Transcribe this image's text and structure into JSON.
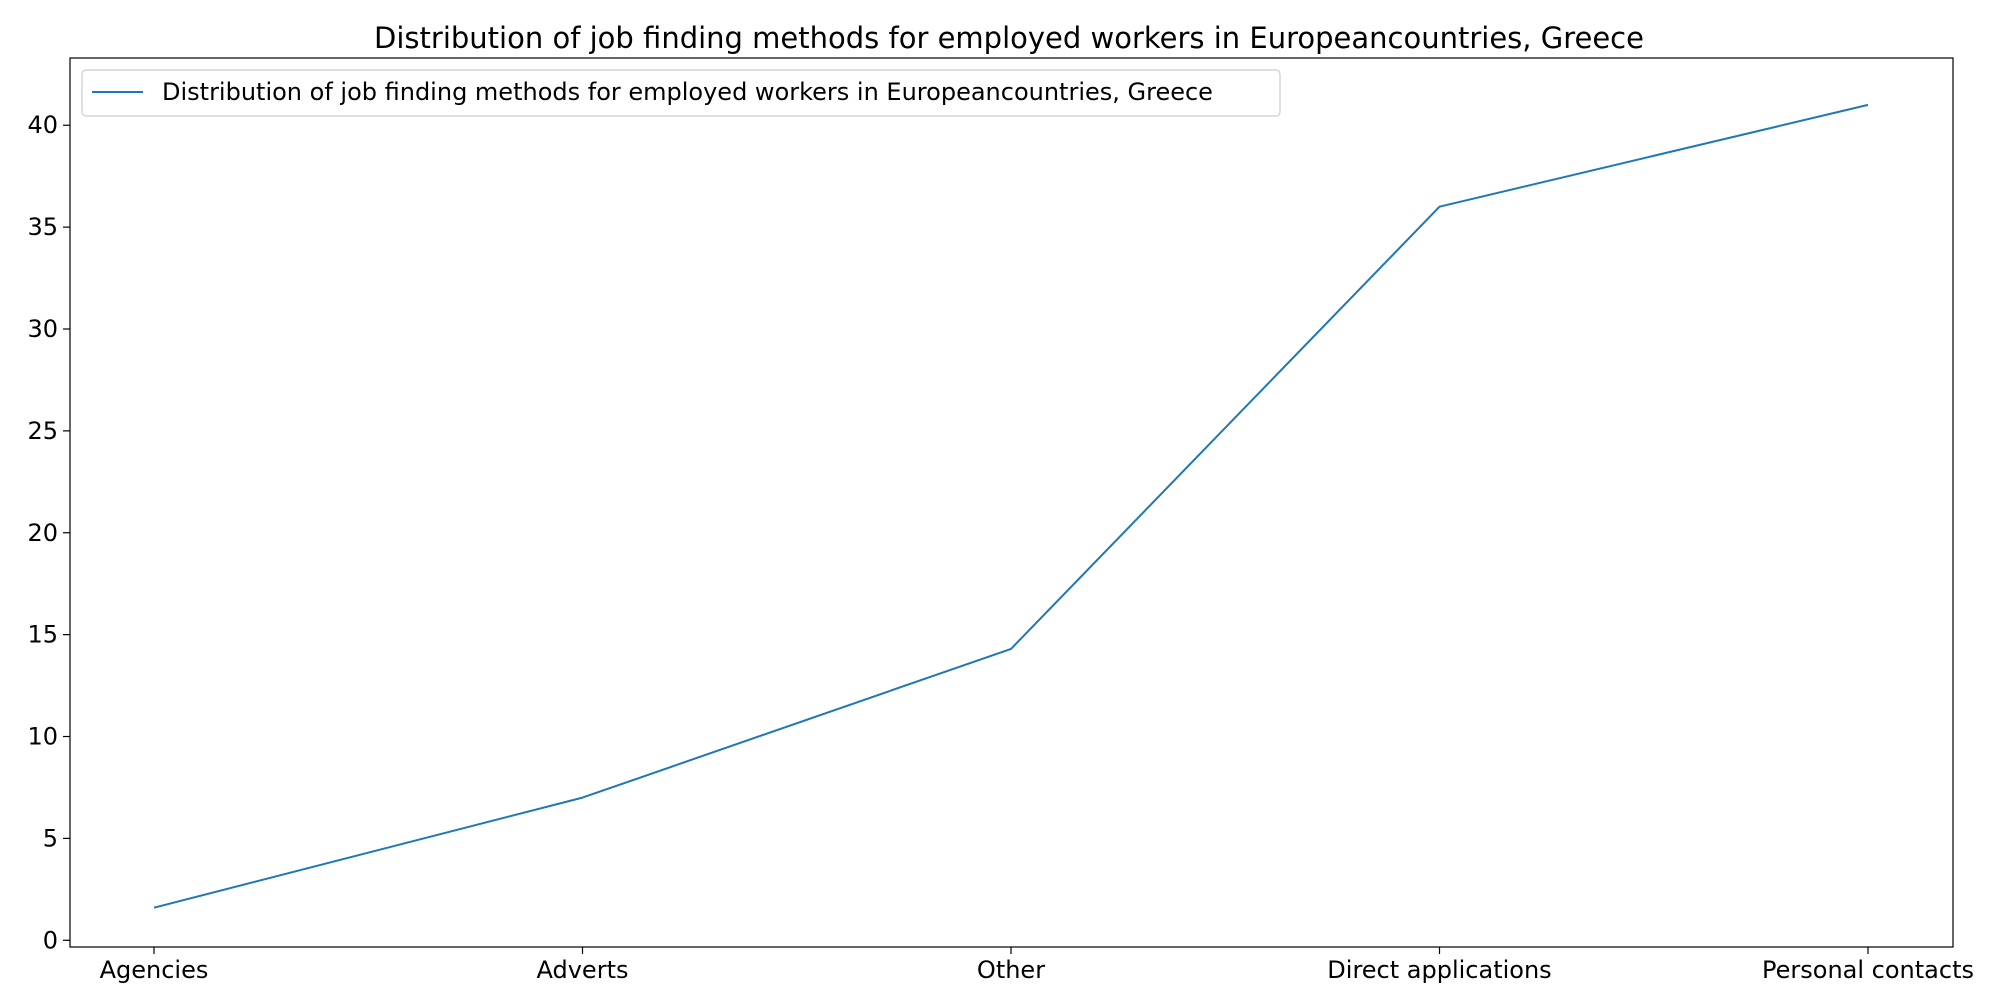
{
  "chart_data": {
    "type": "line",
    "title": "Distribution of job finding methods for employed workers in Europeancountries, Greece",
    "xlabel": "",
    "ylabel": "",
    "categories": [
      "Agencies",
      "Adverts",
      "Other",
      "Direct applications",
      "Personal contacts"
    ],
    "series": [
      {
        "name": "Distribution of job finding methods for employed workers in Europeancountries, Greece",
        "values": [
          1.6,
          7.0,
          14.3,
          36.0,
          41.0
        ],
        "color": "#1f77b4"
      }
    ],
    "ylim": [
      -0.33,
      43.3
    ],
    "yticks": [
      0,
      5,
      10,
      15,
      20,
      25,
      30,
      35,
      40
    ],
    "grid": false,
    "legend_position": "upper-left"
  }
}
